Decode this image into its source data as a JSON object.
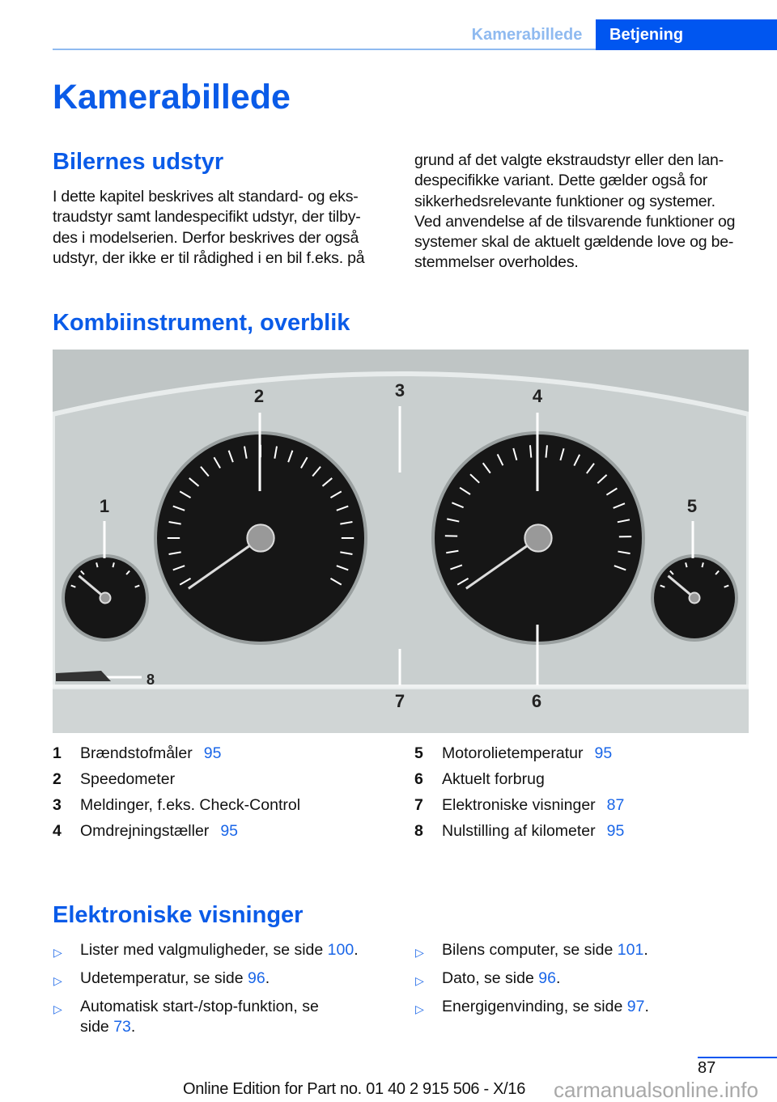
{
  "header": {
    "tab_section": "Kamerabillede",
    "tab_chapter": "Betjening"
  },
  "title": "Kamerabillede",
  "section1": {
    "heading": "Bilernes udstyr",
    "col1": [
      "I dette kapitel beskrives alt standard- og eks-",
      "traudstyr samt landespecifikt udstyr, der tilby-",
      "des i modelserien. Derfor beskrives der også",
      "udstyr, der ikke er til rådighed i en bil f.eks. på"
    ],
    "col2": [
      "grund af det valgte ekstraudstyr eller den lan-",
      "despecifikke variant. Dette gælder også for",
      "sikkerhedsrelevante funktioner og systemer.",
      "Ved anvendelse af de tilsvarende funktioner og",
      "systemer skal de aktuelt gældende love og be-",
      "stemmelser overholdes."
    ]
  },
  "section2": {
    "heading": "Kombiinstrument, overblik",
    "callouts": [
      "1",
      "2",
      "3",
      "4",
      "5",
      "6",
      "7",
      "8"
    ],
    "legend": [
      {
        "n": "1",
        "label": "Brændstofmåler",
        "page": "95"
      },
      {
        "n": "2",
        "label": "Speedometer",
        "page": ""
      },
      {
        "n": "3",
        "label": "Meldinger, f.eks. Check-Control",
        "page": ""
      },
      {
        "n": "4",
        "label": "Omdrejningstæller",
        "page": "95"
      },
      {
        "n": "5",
        "label": "Motorolietemperatur",
        "page": "95"
      },
      {
        "n": "6",
        "label": "Aktuelt forbrug",
        "page": ""
      },
      {
        "n": "7",
        "label": "Elektroniske visninger",
        "page": "87"
      },
      {
        "n": "8",
        "label": "Nulstilling af kilometer",
        "page": "95"
      }
    ]
  },
  "section3": {
    "heading": "Elektroniske visninger",
    "bullet_icon": "▷",
    "items": [
      {
        "text": "Lister med valgmuligheder, se side ",
        "page": "100",
        "end": "."
      },
      {
        "text": "Udetemperatur, se side ",
        "page": "96",
        "end": "."
      },
      {
        "text": "Automatisk start-/stop-funktion, se",
        "text2": "side ",
        "page": "73",
        "end": "."
      },
      {
        "text": "Bilens computer, se side ",
        "page": "101",
        "end": "."
      },
      {
        "text": "Dato, se side ",
        "page": "96",
        "end": "."
      },
      {
        "text": "Energigenvinding, se side ",
        "page": "97",
        "end": "."
      }
    ]
  },
  "footer": {
    "page_number": "87",
    "edition": "Online Edition for Part no. 01 40 2 915 506 - X/16",
    "watermark": "carmanualsonline.info"
  }
}
